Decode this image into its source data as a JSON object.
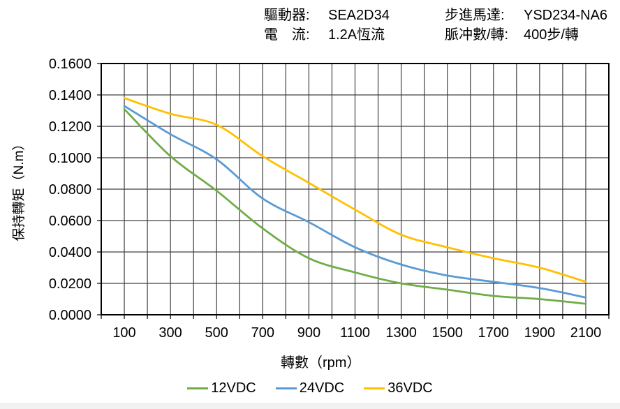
{
  "header": {
    "driver_label": "驅動器:",
    "driver_value": "SEA2D34",
    "current_label": "電　流:",
    "current_value": "1.2A恆流",
    "motor_label": "步進馬達:",
    "motor_value": "YSD234-NA6",
    "pulses_label": "脈冲數/轉:",
    "pulses_value": "400步/轉"
  },
  "chart_data": {
    "type": "line",
    "title": "",
    "xlabel": "轉數（rpm）",
    "ylabel": "保持轉矩（N.m）",
    "x": [
      100,
      300,
      500,
      700,
      900,
      1100,
      1300,
      1500,
      1700,
      1900,
      2100
    ],
    "series": [
      {
        "name": "12VDC",
        "color": "#70AD47",
        "values": [
          0.131,
          0.101,
          0.079,
          0.055,
          0.036,
          0.027,
          0.02,
          0.016,
          0.012,
          0.01,
          0.007
        ]
      },
      {
        "name": "24VDC",
        "color": "#5B9BD5",
        "values": [
          0.133,
          0.115,
          0.099,
          0.074,
          0.059,
          0.043,
          0.032,
          0.025,
          0.021,
          0.017,
          0.011
        ]
      },
      {
        "name": "36VDC",
        "color": "#FFC000",
        "values": [
          0.138,
          0.128,
          0.121,
          0.101,
          0.084,
          0.067,
          0.051,
          0.043,
          0.036,
          0.03,
          0.021
        ]
      }
    ],
    "xlim": [
      0,
      2200
    ],
    "ylim": [
      0,
      0.16
    ],
    "x_grid_step": 100,
    "y_grid_step": 0.02,
    "xticks": [
      100,
      300,
      500,
      700,
      900,
      1100,
      1300,
      1500,
      1700,
      1900,
      2100
    ],
    "ytick_labels": [
      "0.0000",
      "0.0200",
      "0.0400",
      "0.0600",
      "0.0800",
      "0.1000",
      "0.1200",
      "0.1400",
      "0.1600"
    ],
    "grid": "on",
    "legend_position": "bottom",
    "legend": [
      "12VDC",
      "24VDC",
      "36VDC"
    ],
    "colors": {
      "gridline": "#404040",
      "axis_border": "#000000",
      "text": "#000000",
      "background": "#FFFFFF"
    }
  }
}
